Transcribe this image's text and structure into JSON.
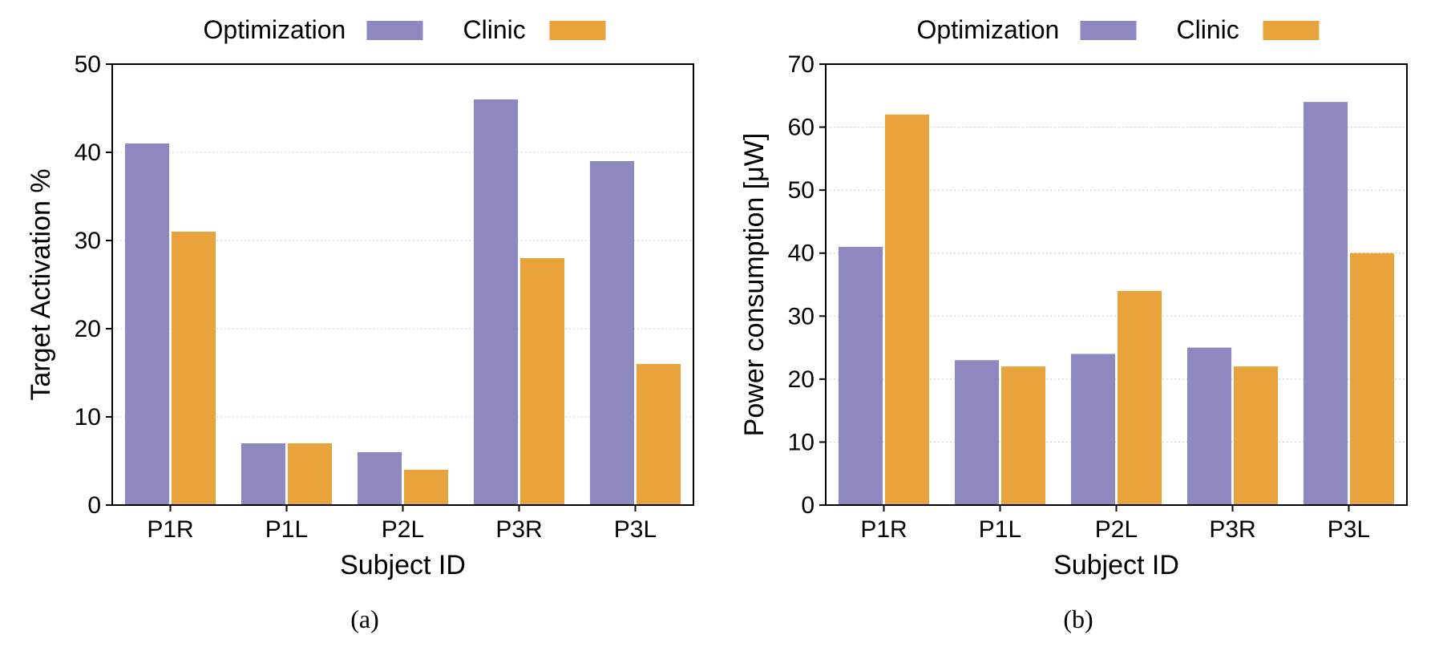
{
  "global": {
    "background_color": "#ffffff",
    "font_family": "Helvetica, Arial, sans-serif",
    "axis_color": "#000000",
    "grid_color": "#cccccc",
    "tick_fontsize": 30,
    "axis_label_fontsize": 34,
    "legend_fontsize": 32,
    "caption_fontfamily": "Times New Roman, serif",
    "caption_fontsize": 32
  },
  "series_meta": {
    "series": [
      {
        "key": "optimization",
        "label": "Optimization",
        "color": "#8d89c0"
      },
      {
        "key": "clinic",
        "label": "Clinic",
        "color": "#e8a33d"
      }
    ],
    "bar_width": 0.38,
    "bar_gap": 0.02
  },
  "panels": [
    {
      "id": "a",
      "caption": "(a)",
      "type": "bar",
      "xlabel": "Subject ID",
      "ylabel": "Target Activation %",
      "categories": [
        "P1R",
        "P1L",
        "P2L",
        "P3R",
        "P3L"
      ],
      "ylim": [
        0,
        50
      ],
      "ytick_step": 10,
      "values": {
        "optimization": [
          41,
          7,
          6,
          46,
          39
        ],
        "clinic": [
          31,
          7,
          4,
          28,
          16
        ]
      }
    },
    {
      "id": "b",
      "caption": "(b)",
      "type": "bar",
      "xlabel": "Subject ID",
      "ylabel": "Power consumption [μW]",
      "categories": [
        "P1R",
        "P1L",
        "P2L",
        "P3R",
        "P3L"
      ],
      "ylim": [
        0,
        70
      ],
      "ytick_step": 10,
      "values": {
        "optimization": [
          41,
          23,
          24,
          25,
          64
        ],
        "clinic": [
          62,
          22,
          34,
          22,
          40
        ]
      }
    }
  ]
}
